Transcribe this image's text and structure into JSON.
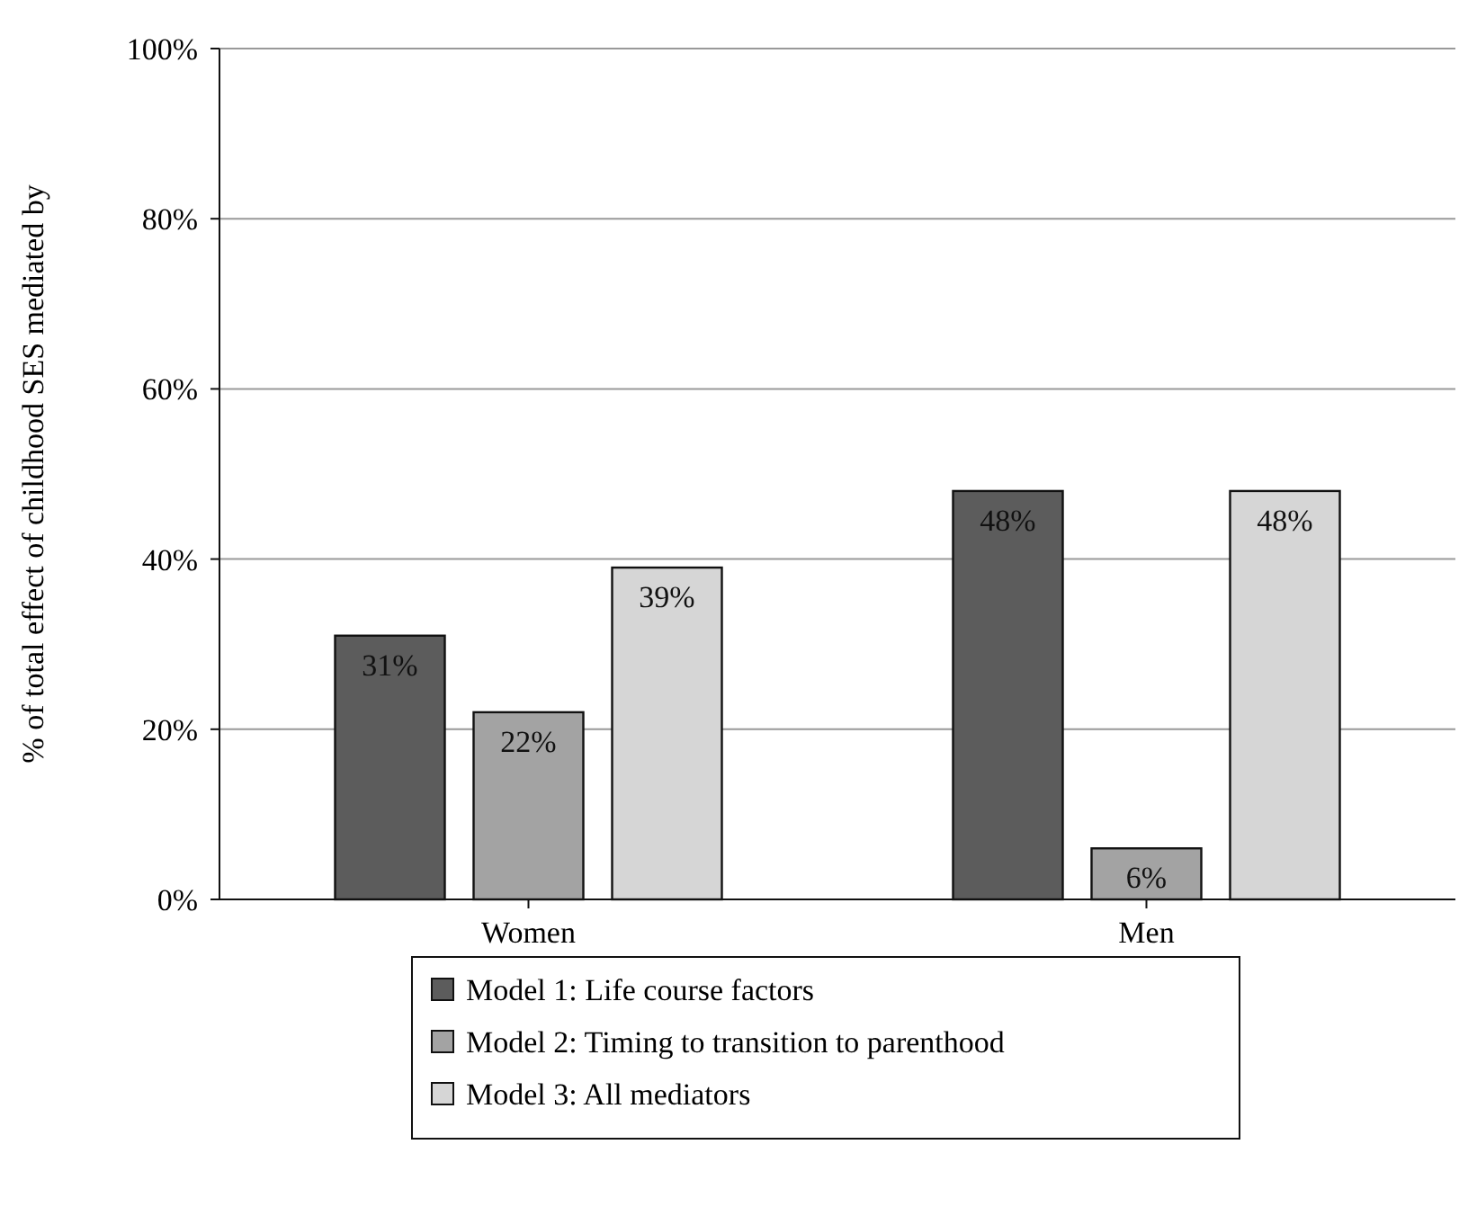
{
  "chart_data": {
    "type": "bar",
    "ylabel": "% of total effect of childhood SES mediated by",
    "categories": [
      "Women",
      "Men"
    ],
    "series": [
      {
        "name": "Model 1: Life course factors",
        "color": "#5c5c5c",
        "values": [
          31,
          48
        ]
      },
      {
        "name": "Model 2: Timing to transition to parenthood",
        "color": "#a3a3a3",
        "values": [
          22,
          6
        ]
      },
      {
        "name": "Model 3: All mediators",
        "color": "#d6d6d6",
        "values": [
          39,
          48
        ]
      }
    ],
    "ylim": [
      0,
      100
    ],
    "yticks": [
      {
        "value": 0,
        "label": "0%"
      },
      {
        "value": 20,
        "label": "20%"
      },
      {
        "value": 40,
        "label": "40%"
      },
      {
        "value": 60,
        "label": "60%"
      },
      {
        "value": 80,
        "label": "80%"
      },
      {
        "value": 100,
        "label": "100%"
      }
    ],
    "grid": "y",
    "legend": "bottom",
    "value_labels": [
      [
        "31%",
        "48%"
      ],
      [
        "22%",
        "6%"
      ],
      [
        "39%",
        "48%"
      ]
    ]
  }
}
